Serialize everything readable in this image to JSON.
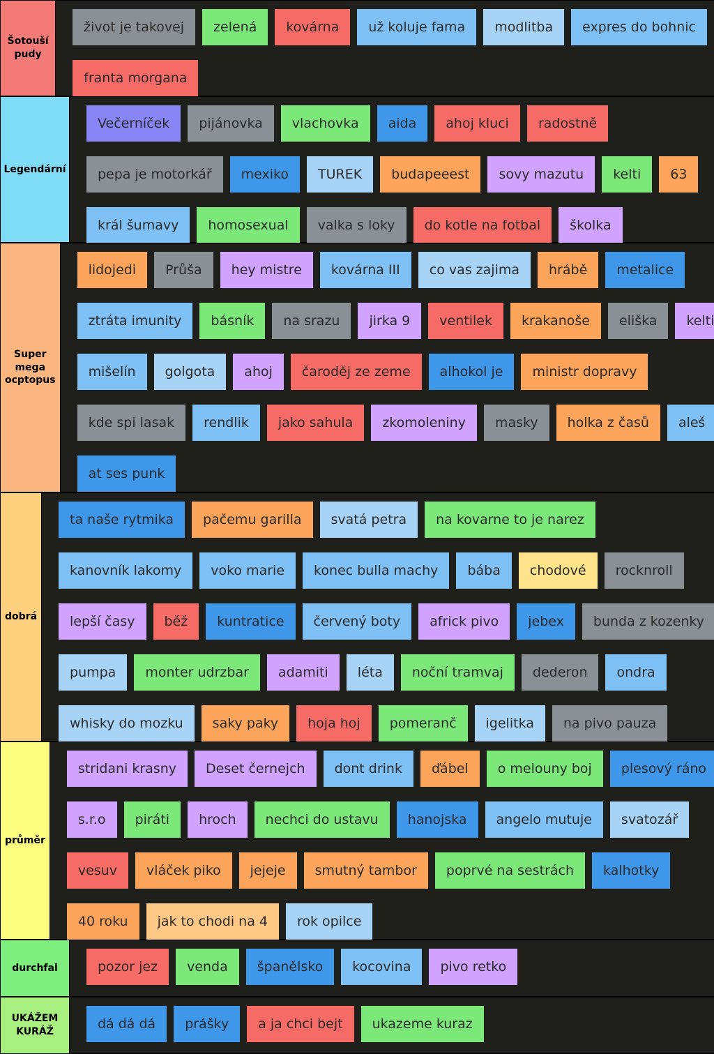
{
  "palette": {
    "gray": "#8a9096",
    "green": "#7de87a",
    "red": "#f66b66",
    "lightblue": "#7fc0f5",
    "paleblue": "#a7d3f7",
    "blue": "#3f97ea",
    "purple": "#cfa3ff",
    "orange": "#fba45a",
    "peach": "#fdc785",
    "violet": "#8885f5",
    "yellow": "#fde48a"
  },
  "tiers": [
    {
      "label": "Šotouší pudy",
      "color": "#f47a77",
      "lines": [
        [
          {
            "text": "život je takovej",
            "c": "gray"
          },
          {
            "text": "zelená",
            "c": "green"
          },
          {
            "text": "kovárna",
            "c": "red"
          },
          {
            "text": "už koluje fama",
            "c": "lightblue"
          },
          {
            "text": "modlitba",
            "c": "paleblue"
          },
          {
            "text": "expres do bohnic",
            "c": "lightblue"
          }
        ],
        [
          {
            "text": "franta morgana",
            "c": "red"
          }
        ]
      ]
    },
    {
      "label": "Legendární",
      "color": "#7fdcf7",
      "lines": [
        [
          {
            "text": "Večerníček",
            "c": "violet"
          },
          {
            "text": "pijánovka",
            "c": "gray"
          },
          {
            "text": "vlachovka",
            "c": "green"
          },
          {
            "text": "aida",
            "c": "blue"
          },
          {
            "text": "ahoj kluci",
            "c": "red"
          },
          {
            "text": "radostně",
            "c": "red"
          }
        ],
        [
          {
            "text": "pepa je motorkář",
            "c": "gray"
          },
          {
            "text": "mexiko",
            "c": "blue"
          },
          {
            "text": "TUREK",
            "c": "paleblue"
          },
          {
            "text": "budapeeest",
            "c": "orange"
          },
          {
            "text": "sovy mazutu",
            "c": "purple"
          },
          {
            "text": "kelti",
            "c": "green"
          },
          {
            "text": "63",
            "c": "orange"
          }
        ],
        [
          {
            "text": "král šumavy",
            "c": "lightblue"
          },
          {
            "text": "homosexual",
            "c": "green"
          },
          {
            "text": "valka s loky",
            "c": "gray"
          },
          {
            "text": "do kotle na fotbal",
            "c": "red"
          },
          {
            "text": "školka",
            "c": "purple"
          }
        ]
      ]
    },
    {
      "label": "Super mega ocptopus",
      "color": "#fbb67f",
      "lines": [
        [
          {
            "text": "lidojedi",
            "c": "orange"
          },
          {
            "text": "Průša",
            "c": "gray"
          },
          {
            "text": "hey mistre",
            "c": "purple"
          },
          {
            "text": "kovárna III",
            "c": "lightblue"
          },
          {
            "text": "co vas zajima",
            "c": "paleblue"
          },
          {
            "text": "hrábě",
            "c": "orange"
          },
          {
            "text": "metalice",
            "c": "blue"
          }
        ],
        [
          {
            "text": "ztráta imunity",
            "c": "lightblue"
          },
          {
            "text": "básník",
            "c": "green"
          },
          {
            "text": "na srazu",
            "c": "gray"
          },
          {
            "text": "jirka 9",
            "c": "purple"
          },
          {
            "text": "ventilek",
            "c": "red"
          },
          {
            "text": "krakanoše",
            "c": "orange"
          },
          {
            "text": "eliška",
            "c": "gray"
          },
          {
            "text": "kelti II",
            "c": "purple"
          }
        ],
        [
          {
            "text": "mišelín",
            "c": "lightblue"
          },
          {
            "text": "golgota",
            "c": "paleblue"
          },
          {
            "text": "ahoj",
            "c": "purple"
          },
          {
            "text": "čaroděj ze zeme",
            "c": "red"
          },
          {
            "text": "alhokol je",
            "c": "blue"
          },
          {
            "text": "ministr dopravy",
            "c": "orange"
          }
        ],
        [
          {
            "text": "kde spi lasak",
            "c": "gray"
          },
          {
            "text": "rendlik",
            "c": "lightblue"
          },
          {
            "text": "jako sahula",
            "c": "red"
          },
          {
            "text": "zkomoleniny",
            "c": "purple"
          },
          {
            "text": "masky",
            "c": "gray"
          },
          {
            "text": "holka z časů",
            "c": "orange"
          },
          {
            "text": "aleš",
            "c": "lightblue"
          }
        ],
        [
          {
            "text": "at ses punk",
            "c": "blue"
          }
        ]
      ]
    },
    {
      "label": "dobrá",
      "color": "#fdd07e",
      "lines": [
        [
          {
            "text": "ta naše rytmika",
            "c": "blue"
          },
          {
            "text": "pačemu garilla",
            "c": "orange"
          },
          {
            "text": "svatá petra",
            "c": "paleblue"
          },
          {
            "text": "na kovarne to je narez",
            "c": "green"
          }
        ],
        [
          {
            "text": "kanovník lakomy",
            "c": "lightblue"
          },
          {
            "text": "voko marie",
            "c": "lightblue"
          },
          {
            "text": "konec bulla machy",
            "c": "lightblue"
          },
          {
            "text": "bába",
            "c": "lightblue"
          },
          {
            "text": "chodové",
            "c": "yellow"
          },
          {
            "text": "rocknroll",
            "c": "gray"
          }
        ],
        [
          {
            "text": "lepší časy",
            "c": "purple"
          },
          {
            "text": "běž",
            "c": "red"
          },
          {
            "text": "kuntratice",
            "c": "blue"
          },
          {
            "text": "červený boty",
            "c": "lightblue"
          },
          {
            "text": "africk pivo",
            "c": "purple"
          },
          {
            "text": "jebex",
            "c": "blue"
          },
          {
            "text": "bunda z kozenky",
            "c": "gray"
          }
        ],
        [
          {
            "text": "pumpa",
            "c": "paleblue"
          },
          {
            "text": "monter udrzbar",
            "c": "green"
          },
          {
            "text": "adamiti",
            "c": "purple"
          },
          {
            "text": "léta",
            "c": "paleblue"
          },
          {
            "text": "noční tramvaj",
            "c": "green"
          },
          {
            "text": "dederon",
            "c": "gray"
          },
          {
            "text": "ondra",
            "c": "lightblue"
          }
        ],
        [
          {
            "text": "whisky do mozku",
            "c": "paleblue"
          },
          {
            "text": "saky paky",
            "c": "orange"
          },
          {
            "text": "hoja hoj",
            "c": "red"
          },
          {
            "text": "pomeranč",
            "c": "green"
          },
          {
            "text": "igelitka",
            "c": "paleblue"
          },
          {
            "text": "na pivo pauza",
            "c": "gray"
          }
        ]
      ]
    },
    {
      "label": "průměr",
      "color": "#fdfd7f",
      "lines": [
        [
          {
            "text": "stridani krasny",
            "c": "purple"
          },
          {
            "text": "Deset černejch",
            "c": "purple"
          },
          {
            "text": "dont drink",
            "c": "lightblue"
          },
          {
            "text": "ďábel",
            "c": "orange"
          },
          {
            "text": "o melouny boj",
            "c": "green"
          },
          {
            "text": "plesový ráno",
            "c": "blue"
          }
        ],
        [
          {
            "text": "s.r.o",
            "c": "purple"
          },
          {
            "text": "piráti",
            "c": "green"
          },
          {
            "text": "hroch",
            "c": "purple"
          },
          {
            "text": "nechci do ustavu",
            "c": "green"
          },
          {
            "text": "hanojska",
            "c": "blue"
          },
          {
            "text": "angelo mutuje",
            "c": "lightblue"
          },
          {
            "text": "svatozář",
            "c": "paleblue"
          }
        ],
        [
          {
            "text": "vesuv",
            "c": "red"
          },
          {
            "text": "vláček piko",
            "c": "orange"
          },
          {
            "text": "jejeje",
            "c": "orange"
          },
          {
            "text": "smutný tambor",
            "c": "orange"
          },
          {
            "text": "poprvé na sestrách",
            "c": "green"
          },
          {
            "text": "kalhotky",
            "c": "blue"
          }
        ],
        [
          {
            "text": "40 roku",
            "c": "orange"
          },
          {
            "text": "jak to chodi na 4",
            "c": "peach"
          },
          {
            "text": "rok opilce",
            "c": "paleblue"
          }
        ]
      ]
    },
    {
      "label": "durchfal",
      "color": "#7eee7e",
      "lines": [
        [
          {
            "text": "pozor jez",
            "c": "red"
          },
          {
            "text": "venda",
            "c": "green"
          },
          {
            "text": "španělsko",
            "c": "blue"
          },
          {
            "text": "kocovina",
            "c": "lightblue"
          },
          {
            "text": "pivo retko",
            "c": "purple"
          }
        ]
      ]
    },
    {
      "label": "UKÁŽEM KURÁŽ",
      "color": "#a7f07f",
      "lines": [
        [
          {
            "text": "dá dá dá",
            "c": "blue"
          },
          {
            "text": "prášky",
            "c": "blue"
          },
          {
            "text": "a ja chci bejt",
            "c": "red"
          },
          {
            "text": "ukazeme kuraz",
            "c": "green"
          }
        ]
      ]
    }
  ]
}
